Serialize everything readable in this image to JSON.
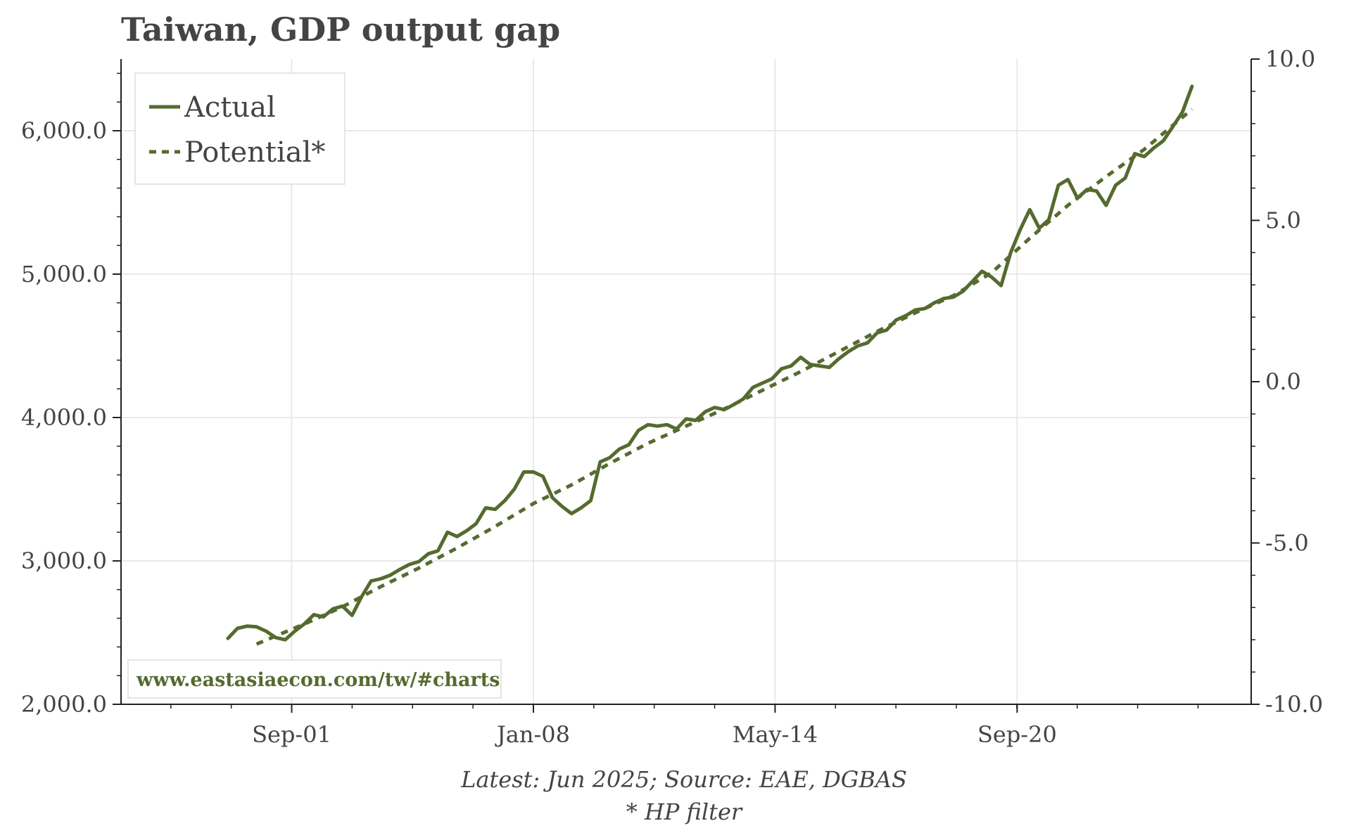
{
  "chart_data": {
    "type": "line",
    "title": "Taiwan, GDP output gap",
    "x_tick_labels": [
      "Sep-01",
      "Jan-08",
      "May-14",
      "Sep-20"
    ],
    "x_tick_positions": [
      2001.67,
      2008.0,
      2014.33,
      2020.67
    ],
    "xlim": [
      1997.2,
      2026.8
    ],
    "y_left": {
      "lim": [
        2000,
        6500
      ],
      "ticks": [
        "2,000.0",
        "3,000.0",
        "4,000.0",
        "5,000.0",
        "6,000.0"
      ],
      "tick_values": [
        2000,
        3000,
        4000,
        5000,
        6000
      ]
    },
    "y_right": {
      "lim": [
        -10,
        10
      ],
      "ticks": [
        "-10.0",
        "-5.0",
        "0.0",
        "5.0",
        "10.0"
      ],
      "tick_values": [
        -10,
        -5,
        0,
        5,
        10
      ]
    },
    "grid": true,
    "legend": {
      "position": "top-left"
    },
    "series": [
      {
        "name": "Actual",
        "style": "solid",
        "x": [
          2000.0,
          2000.25,
          2000.5,
          2000.75,
          2001.0,
          2001.25,
          2001.5,
          2001.75,
          2002.0,
          2002.25,
          2002.5,
          2002.75,
          2003.0,
          2003.25,
          2003.5,
          2003.75,
          2004.0,
          2004.25,
          2004.5,
          2004.75,
          2005.0,
          2005.25,
          2005.5,
          2005.75,
          2006.0,
          2006.25,
          2006.5,
          2006.75,
          2007.0,
          2007.25,
          2007.5,
          2007.75,
          2008.0,
          2008.25,
          2008.5,
          2008.75,
          2009.0,
          2009.25,
          2009.5,
          2009.75,
          2010.0,
          2010.25,
          2010.5,
          2010.75,
          2011.0,
          2011.25,
          2011.5,
          2011.75,
          2012.0,
          2012.25,
          2012.5,
          2012.75,
          2013.0,
          2013.25,
          2013.5,
          2013.75,
          2014.0,
          2014.25,
          2014.5,
          2014.75,
          2015.0,
          2015.25,
          2015.5,
          2015.75,
          2016.0,
          2016.25,
          2016.5,
          2016.75,
          2017.0,
          2017.25,
          2017.5,
          2017.75,
          2018.0,
          2018.25,
          2018.5,
          2018.75,
          2019.0,
          2019.25,
          2019.5,
          2019.75,
          2020.0,
          2020.25,
          2020.5,
          2020.75,
          2021.0,
          2021.25,
          2021.5,
          2021.75,
          2022.0,
          2022.25,
          2022.5,
          2022.75,
          2023.0,
          2023.25,
          2023.5,
          2023.75,
          2024.0,
          2024.25,
          2024.5,
          2024.75,
          2025.0,
          2025.25
        ],
        "values": [
          2460,
          2530,
          2545,
          2540,
          2510,
          2465,
          2450,
          2510,
          2560,
          2625,
          2610,
          2665,
          2685,
          2620,
          2750,
          2860,
          2875,
          2900,
          2940,
          2975,
          2995,
          3050,
          3070,
          3200,
          3170,
          3210,
          3260,
          3370,
          3360,
          3420,
          3500,
          3620,
          3620,
          3590,
          3440,
          3380,
          3330,
          3370,
          3420,
          3690,
          3720,
          3780,
          3810,
          3910,
          3950,
          3940,
          3950,
          3920,
          3990,
          3980,
          4040,
          4070,
          4055,
          4090,
          4130,
          4210,
          4240,
          4270,
          4340,
          4360,
          4420,
          4370,
          4360,
          4350,
          4410,
          4460,
          4500,
          4520,
          4590,
          4610,
          4680,
          4710,
          4750,
          4760,
          4800,
          4830,
          4840,
          4880,
          4950,
          5020,
          4980,
          4920,
          5150,
          5310,
          5450,
          5320,
          5380,
          5620,
          5660,
          5530,
          5590,
          5580,
          5480,
          5620,
          5670,
          5840,
          5820,
          5880,
          5930,
          6030,
          6130,
          6310
        ]
      },
      {
        "name": "Potential*",
        "style": "dashed",
        "x": [
          2000.75,
          2002.0,
          2003.0,
          2004.0,
          2005.0,
          2006.0,
          2007.0,
          2008.0,
          2009.0,
          2010.0,
          2011.0,
          2012.0,
          2013.0,
          2014.0,
          2015.0,
          2016.0,
          2017.0,
          2018.0,
          2019.0,
          2020.0,
          2021.0,
          2022.0,
          2023.0,
          2024.0,
          2025.25
        ],
        "values": [
          2420,
          2560,
          2680,
          2820,
          2950,
          3090,
          3240,
          3400,
          3530,
          3680,
          3820,
          3940,
          4060,
          4190,
          4320,
          4460,
          4600,
          4730,
          4850,
          5010,
          5250,
          5480,
          5680,
          5870,
          6150
        ]
      }
    ]
  },
  "legend": {
    "actual_label": "Actual",
    "potential_label": "Potential*"
  },
  "watermark": "www.eastasiaecon.com/tw/#charts",
  "footer": {
    "source": "Latest: Jun 2025; Source: EAE, DGBAS",
    "note": "* HP filter"
  },
  "colors": {
    "series": "#556b2f",
    "axis": "#222222",
    "grid": "#e2e2e2",
    "text": "#444444"
  }
}
